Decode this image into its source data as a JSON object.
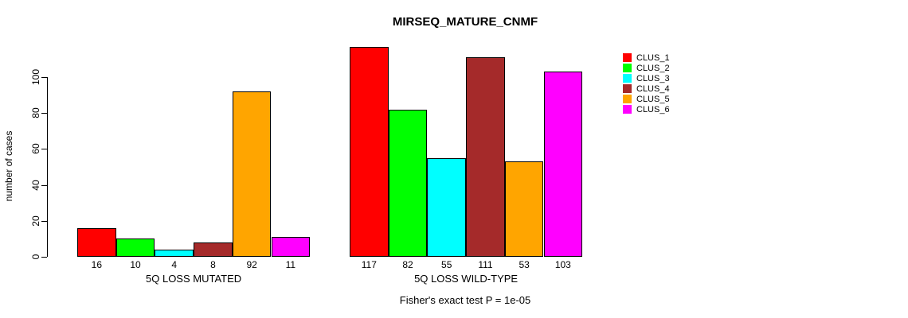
{
  "title": "MIRSEQ_MATURE_CNMF",
  "chart_data": {
    "type": "bar",
    "title": "MIRSEQ_MATURE_CNMF",
    "ylabel": "number of cases",
    "xlabel": "",
    "ylim": [
      0,
      117
    ],
    "yticks": [
      0,
      20,
      40,
      60,
      80,
      100
    ],
    "grid": false,
    "legend_position": "right-outside",
    "show_bar_values": true,
    "categories": [
      "5Q LOSS MUTATED",
      "5Q LOSS WILD-TYPE"
    ],
    "series": [
      {
        "name": "CLUS_1",
        "color": "#FF0000",
        "values": [
          16,
          117
        ]
      },
      {
        "name": "CLUS_2",
        "color": "#00FF00",
        "values": [
          10,
          82
        ]
      },
      {
        "name": "CLUS_3",
        "color": "#00FFFF",
        "values": [
          4,
          55
        ]
      },
      {
        "name": "CLUS_4",
        "color": "#A52A2A",
        "values": [
          8,
          111
        ]
      },
      {
        "name": "CLUS_5",
        "color": "#FFA500",
        "values": [
          92,
          53
        ]
      },
      {
        "name": "CLUS_6",
        "color": "#FF00FF",
        "values": [
          11,
          103
        ]
      }
    ],
    "annotation": "Fisher's exact test P = 1e-05"
  }
}
